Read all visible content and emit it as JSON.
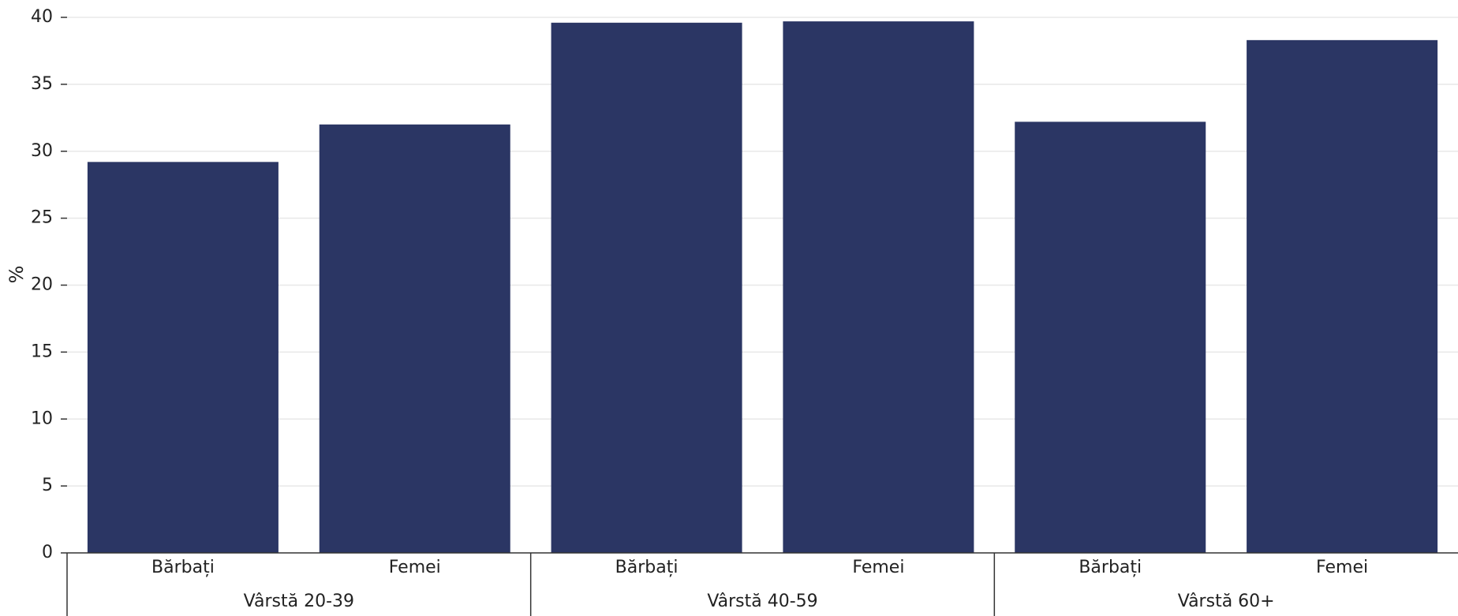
{
  "chart_data": {
    "type": "bar",
    "ylabel": "%",
    "xlabel": "",
    "ylim": [
      0,
      40
    ],
    "yticks": [
      0,
      5,
      10,
      15,
      20,
      25,
      30,
      35,
      40
    ],
    "grid": true,
    "bar_color": "#2b3664",
    "groups": [
      {
        "label": "Vârstă 20-39",
        "categories": [
          "Bărbați",
          "Femei"
        ],
        "values": [
          29.2,
          32.0
        ]
      },
      {
        "label": "Vârstă 40-59",
        "categories": [
          "Bărbați",
          "Femei"
        ],
        "values": [
          39.6,
          39.7
        ]
      },
      {
        "label": "Vârstă 60+",
        "categories": [
          "Bărbați",
          "Femei"
        ],
        "values": [
          32.2,
          38.3
        ]
      }
    ]
  }
}
